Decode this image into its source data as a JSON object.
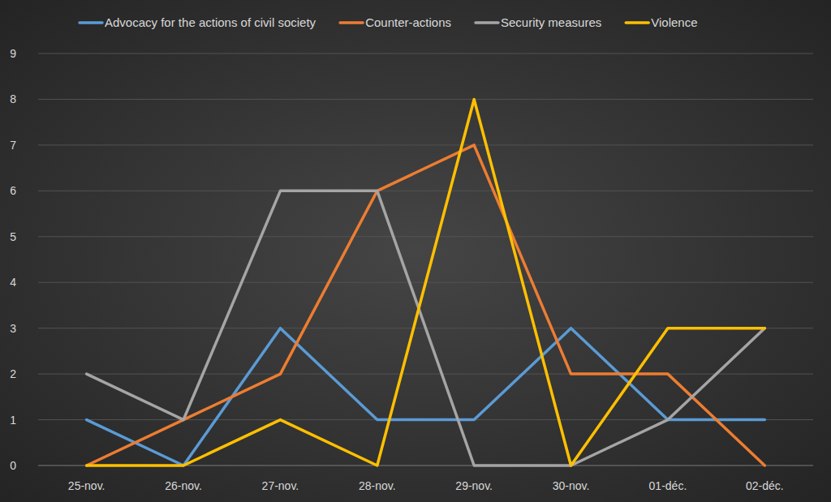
{
  "chart_data": {
    "type": "line",
    "categories": [
      "25-nov.",
      "26-nov.",
      "27-nov.",
      "28-nov.",
      "29-nov.",
      "30-nov.",
      "01-déc.",
      "02-déc."
    ],
    "series": [
      {
        "name": "Advocacy for the actions of civil society",
        "color": "#5b9bd5",
        "values": [
          1,
          0,
          3,
          1,
          1,
          3,
          1,
          1
        ]
      },
      {
        "name": "Counter-actions",
        "color": "#ed7d31",
        "values": [
          0,
          1,
          2,
          6,
          7,
          2,
          2,
          0
        ]
      },
      {
        "name": "Security measures",
        "color": "#a5a5a5",
        "values": [
          2,
          1,
          6,
          6,
          0,
          0,
          1,
          3
        ]
      },
      {
        "name": "Violence",
        "color": "#ffc000",
        "values": [
          0,
          0,
          1,
          0,
          8,
          0,
          3,
          3
        ]
      }
    ],
    "ylim": [
      0,
      9
    ],
    "yticks": [
      0,
      1,
      2,
      3,
      4,
      5,
      6,
      7,
      8,
      9
    ],
    "grid": true,
    "legend": "top"
  }
}
